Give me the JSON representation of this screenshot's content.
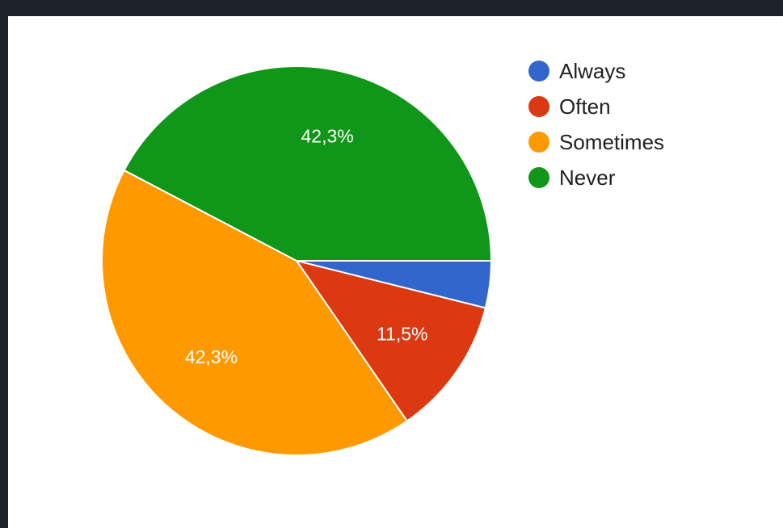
{
  "chart_data": {
    "type": "pie",
    "series": [
      {
        "name": "Always",
        "value": 3.9,
        "label": "",
        "color": "#3366CC"
      },
      {
        "name": "Often",
        "value": 11.5,
        "label": "11,5%",
        "color": "#DC3912"
      },
      {
        "name": "Sometimes",
        "value": 42.3,
        "label": "42,3%",
        "color": "#FF9900"
      },
      {
        "name": "Never",
        "value": 42.3,
        "label": "42,3%",
        "color": "#109618"
      }
    ],
    "legend_position": "right",
    "start_angle": "3 o'clock, clockwise"
  }
}
